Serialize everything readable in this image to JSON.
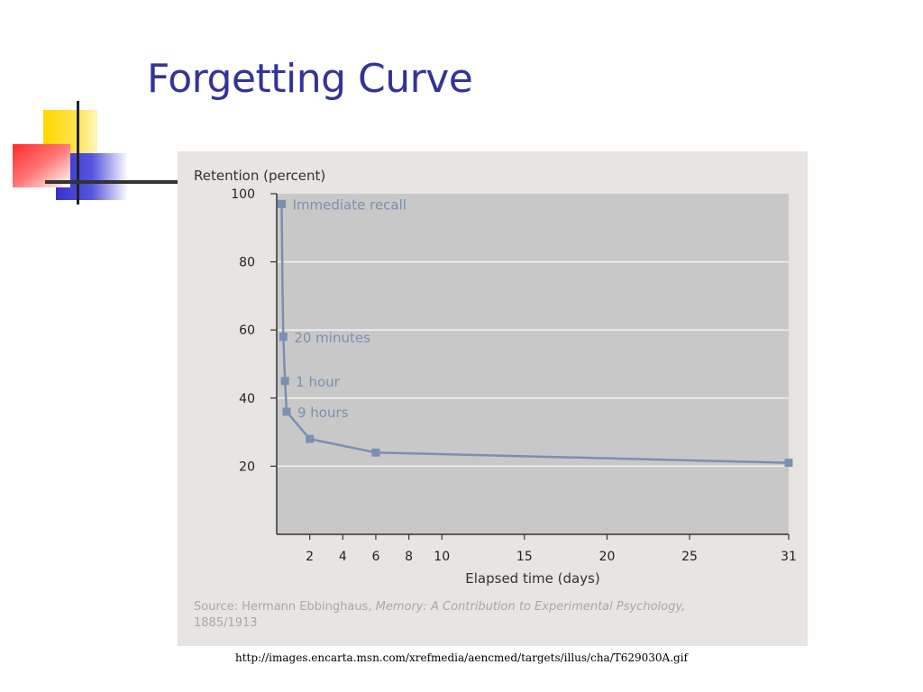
{
  "slide": {
    "title": "Forgetting Curve",
    "url": "http://images.encarta.msn.com/xrefmedia/aencmed/targets/illus/cha/T629030A.gif"
  },
  "source": {
    "prefix": "Source: Hermann Ebbinghaus, ",
    "work": "Memory: A Contribution to Experimental Psychology,",
    "years": "1885/1913"
  },
  "colors": {
    "title": "#333399",
    "plot_bg": "#c8c8c8",
    "panel_bg": "#e8e4e2",
    "series": "#7a8fb2",
    "deco_yellow": "#ffd700",
    "deco_red": "#ff3b3b",
    "deco_blue": "#3333cc"
  },
  "chart_data": {
    "type": "line",
    "ylabel": "Retention (percent)",
    "xlabel": "Elapsed time (days)",
    "xlim": [
      0,
      31
    ],
    "ylim": [
      0,
      100
    ],
    "xticks": [
      2,
      4,
      6,
      8,
      10,
      15,
      20,
      25,
      31
    ],
    "yticks": [
      20,
      40,
      60,
      80,
      100
    ],
    "grid": "horizontal",
    "series": [
      {
        "x": [
          0.3,
          0.35,
          0.4,
          0.5,
          0.6,
          2,
          6,
          31
        ],
        "y": [
          97,
          73,
          58,
          45,
          36,
          28,
          24,
          21
        ]
      }
    ],
    "annotations": [
      {
        "label": "Immediate recall",
        "x": 0.3,
        "y": 97
      },
      {
        "label": "20 minutes",
        "x": 0.4,
        "y": 58
      },
      {
        "label": "1 hour",
        "x": 0.5,
        "y": 45
      },
      {
        "label": "9 hours",
        "x": 0.6,
        "y": 36
      }
    ]
  }
}
